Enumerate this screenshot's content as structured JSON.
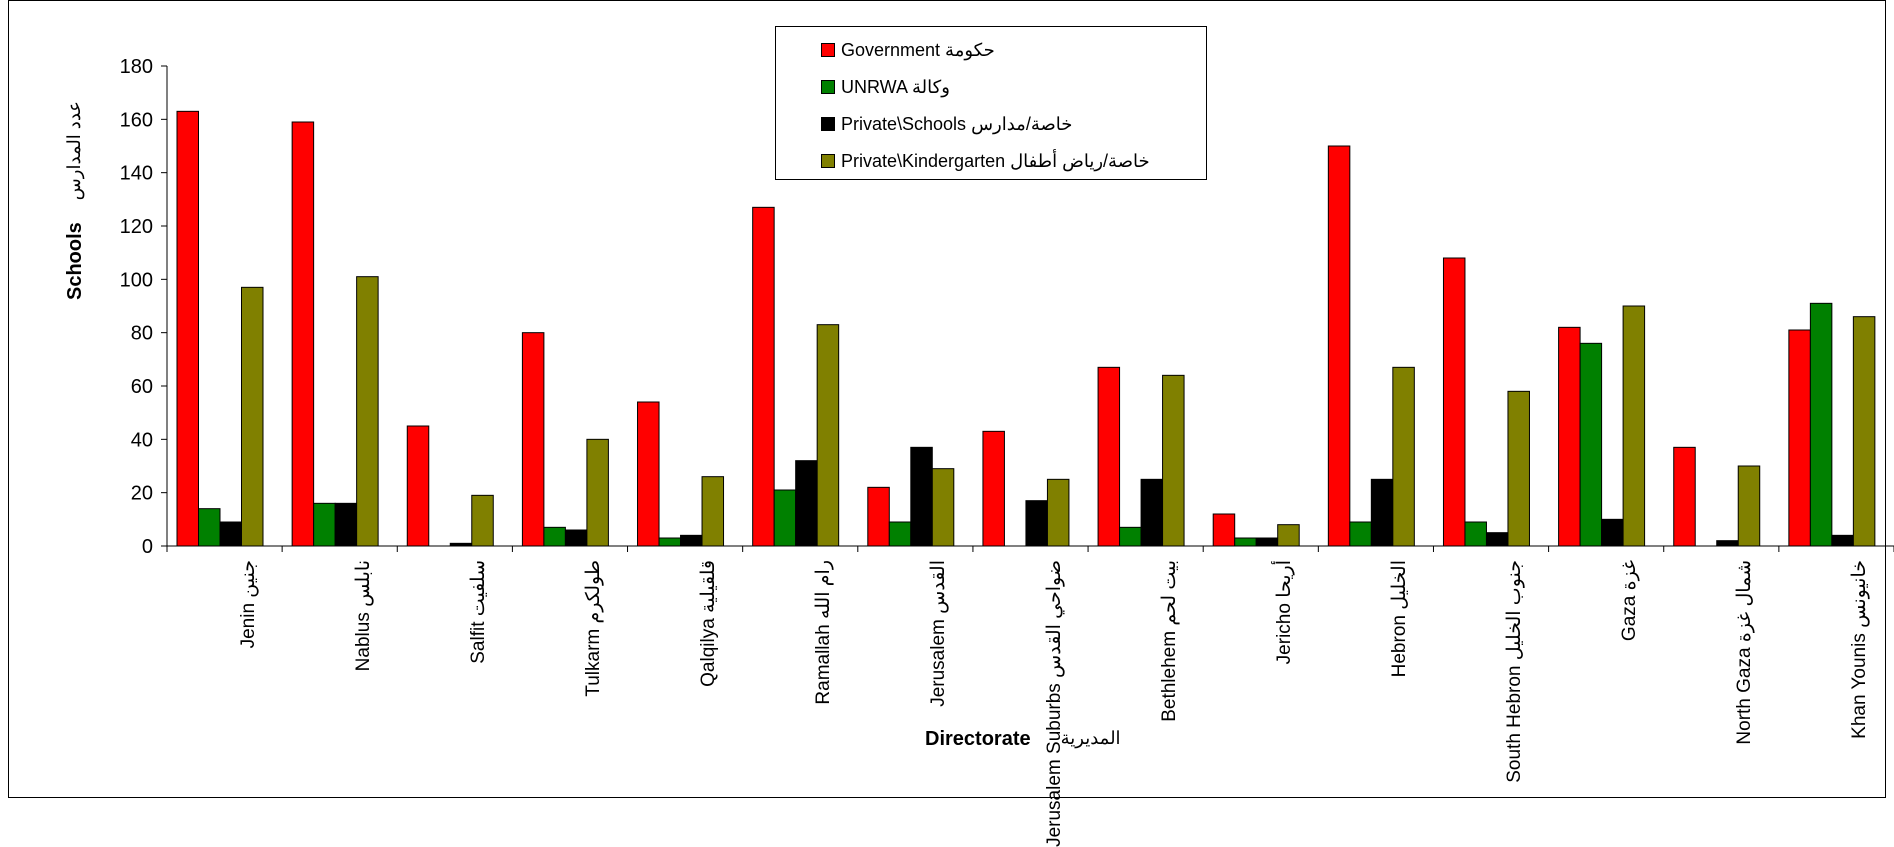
{
  "chart_data": {
    "type": "bar",
    "title": "",
    "ylabel": "Schools",
    "ylabel_ar": "عدد المدارس",
    "xlabel": "Directorate",
    "xlabel_ar": "المديرية",
    "ylim": [
      0,
      180
    ],
    "yticks": [
      0,
      20,
      40,
      60,
      80,
      100,
      120,
      140,
      160,
      180
    ],
    "grid": false,
    "legend_position": "top-center",
    "categories": [
      {
        "en": "Jenin",
        "ar": "جنين"
      },
      {
        "en": "Nablus",
        "ar": "نابلس"
      },
      {
        "en": "Salfit",
        "ar": "سلفيت"
      },
      {
        "en": "Tulkarm",
        "ar": "طولكرم"
      },
      {
        "en": "Qalqilya",
        "ar": "قلقيلية"
      },
      {
        "en": "Ramallah",
        "ar": "رام الله"
      },
      {
        "en": "Jerusalem",
        "ar": "القدس"
      },
      {
        "en": "Jerusalem Suburbs",
        "ar": "ضواحي القدس"
      },
      {
        "en": "Bethlehem",
        "ar": "بيت لحم"
      },
      {
        "en": "Jericho",
        "ar": "أريحا"
      },
      {
        "en": "Hebron",
        "ar": "الخليل"
      },
      {
        "en": "South Hebron",
        "ar": "جنوب الخليل"
      },
      {
        "en": "Gaza",
        "ar": "غزة"
      },
      {
        "en": "North Gaza",
        "ar": "شمال غزة"
      },
      {
        "en": "Khan Younis",
        "ar": "خانيونس"
      }
    ],
    "series": [
      {
        "name": "Government حكومة",
        "color": "#ff0000",
        "values": [
          163,
          159,
          45,
          80,
          54,
          127,
          22,
          43,
          67,
          12,
          150,
          108,
          82,
          37,
          81
        ]
      },
      {
        "name": "UNRWA وكالة",
        "color": "#008000",
        "values": [
          14,
          16,
          0,
          7,
          3,
          21,
          9,
          0,
          7,
          3,
          9,
          9,
          76,
          0,
          91
        ]
      },
      {
        "name": "Private\\Schools خاصة/مدارس",
        "color": "#000000",
        "values": [
          9,
          16,
          1,
          6,
          4,
          32,
          37,
          17,
          25,
          3,
          25,
          5,
          10,
          2,
          4
        ]
      },
      {
        "name": "Private\\Kindergarten خاصة/رياض أطفال",
        "color": "#808000",
        "values": [
          97,
          101,
          19,
          40,
          26,
          83,
          29,
          25,
          64,
          8,
          67,
          58,
          90,
          30,
          86
        ]
      }
    ]
  }
}
